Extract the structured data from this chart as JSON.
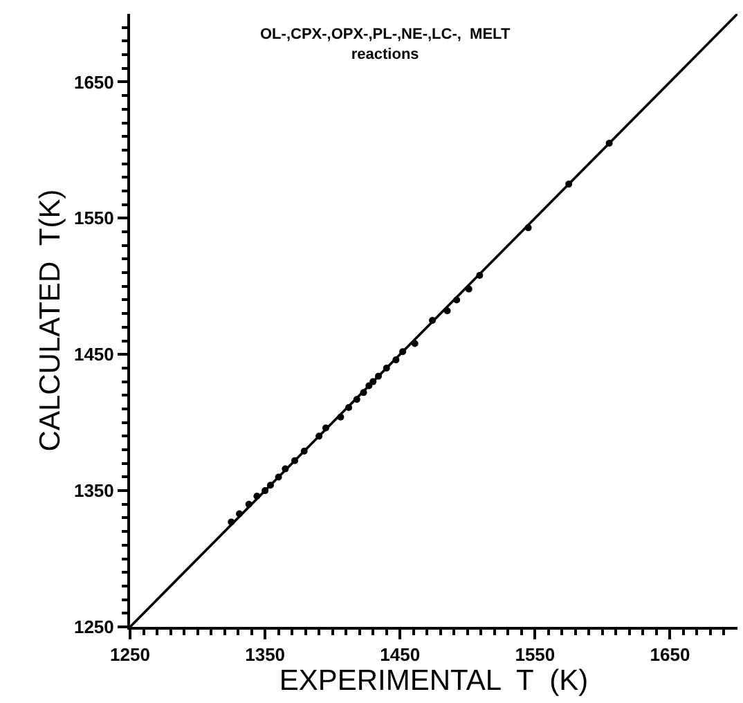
{
  "chart_data": {
    "type": "scatter",
    "xlabel": "EXPERIMENTAL  T  (K)",
    "ylabel": "CALCULATED  T(K)",
    "annotations": [
      "OL-,CPX-,OPX-,PL-,NE-,LC-,  MELT\nreactions"
    ],
    "xlim": [
      1250,
      1700
    ],
    "ylim": [
      1250,
      1700
    ],
    "xticks": [
      1250,
      {
        "value": 1260,
        "label": null
      },
      {
        "value": 1270,
        "label": null
      },
      {
        "value": 1280,
        "label": null
      },
      {
        "value": 1290,
        "label": null
      },
      {
        "value": 1300,
        "label": null
      },
      {
        "value": 1310,
        "label": null
      },
      {
        "value": 1320,
        "label": null
      },
      {
        "value": 1330,
        "label": null
      },
      {
        "value": 1340,
        "label": null
      },
      1350,
      {
        "value": 1360,
        "label": null
      },
      {
        "value": 1370,
        "label": null
      },
      {
        "value": 1380,
        "label": null
      },
      {
        "value": 1390,
        "label": null
      },
      {
        "value": 1400,
        "label": null
      },
      {
        "value": 1410,
        "label": null
      },
      {
        "value": 1420,
        "label": null
      },
      {
        "value": 1430,
        "label": null
      },
      {
        "value": 1440,
        "label": null
      },
      1450,
      {
        "value": 1460,
        "label": null
      },
      {
        "value": 1470,
        "label": null
      },
      {
        "value": 1480,
        "label": null
      },
      {
        "value": 1490,
        "label": null
      },
      {
        "value": 1500,
        "label": null
      },
      {
        "value": 1510,
        "label": null
      },
      {
        "value": 1520,
        "label": null
      },
      {
        "value": 1530,
        "label": null
      },
      {
        "value": 1540,
        "label": null
      },
      1550,
      {
        "value": 1560,
        "label": null
      },
      {
        "value": 1570,
        "label": null
      },
      {
        "value": 1580,
        "label": null
      },
      {
        "value": 1590,
        "label": null
      },
      {
        "value": 1600,
        "label": null
      },
      {
        "value": 1610,
        "label": null
      },
      {
        "value": 1620,
        "label": null
      },
      {
        "value": 1630,
        "label": null
      },
      {
        "value": 1640,
        "label": null
      },
      1650,
      {
        "value": 1660,
        "label": null
      },
      {
        "value": 1670,
        "label": null
      },
      {
        "value": 1680,
        "label": null
      },
      {
        "value": 1690,
        "label": null
      }
    ],
    "yticks": [
      1250,
      {
        "value": 1260,
        "label": null
      },
      {
        "value": 1270,
        "label": null
      },
      {
        "value": 1280,
        "label": null
      },
      {
        "value": 1290,
        "label": null
      },
      {
        "value": 1300,
        "label": null
      },
      {
        "value": 1310,
        "label": null
      },
      {
        "value": 1320,
        "label": null
      },
      {
        "value": 1330,
        "label": null
      },
      {
        "value": 1340,
        "label": null
      },
      1350,
      {
        "value": 1360,
        "label": null
      },
      {
        "value": 1370,
        "label": null
      },
      {
        "value": 1380,
        "label": null
      },
      {
        "value": 1390,
        "label": null
      },
      {
        "value": 1400,
        "label": null
      },
      {
        "value": 1410,
        "label": null
      },
      {
        "value": 1420,
        "label": null
      },
      {
        "value": 1430,
        "label": null
      },
      {
        "value": 1440,
        "label": null
      },
      1450,
      {
        "value": 1460,
        "label": null
      },
      {
        "value": 1470,
        "label": null
      },
      {
        "value": 1480,
        "label": null
      },
      {
        "value": 1490,
        "label": null
      },
      {
        "value": 1500,
        "label": null
      },
      {
        "value": 1510,
        "label": null
      },
      {
        "value": 1520,
        "label": null
      },
      {
        "value": 1530,
        "label": null
      },
      {
        "value": 1540,
        "label": null
      },
      1550,
      {
        "value": 1560,
        "label": null
      },
      {
        "value": 1570,
        "label": null
      },
      {
        "value": 1580,
        "label": null
      },
      {
        "value": 1590,
        "label": null
      },
      {
        "value": 1600,
        "label": null
      },
      {
        "value": 1610,
        "label": null
      },
      {
        "value": 1620,
        "label": null
      },
      {
        "value": 1630,
        "label": null
      },
      {
        "value": 1640,
        "label": null
      },
      1650,
      {
        "value": 1660,
        "label": null
      },
      {
        "value": 1670,
        "label": null
      },
      {
        "value": 1680,
        "label": null
      },
      {
        "value": 1690,
        "label": null
      }
    ],
    "grid": false,
    "marker": "circle",
    "series": [
      {
        "type": "line",
        "color": "#000000",
        "x": [
          1250,
          1700
        ],
        "values": [
          1250,
          1700
        ],
        "marker": "none"
      },
      {
        "color": "#000000",
        "x": [
          1325,
          1331,
          1338,
          1344,
          1350,
          1354,
          1360,
          1365,
          1372,
          1379,
          1390,
          1395,
          1406,
          1412,
          1418,
          1423,
          1427,
          1430,
          1434,
          1440,
          1447,
          1452,
          1461,
          1474,
          1485,
          1492,
          1501,
          1509,
          1545,
          1575,
          1605
        ],
        "values": [
          1327,
          1333,
          1340,
          1346,
          1350,
          1354,
          1360,
          1366,
          1372,
          1379,
          1390,
          1396,
          1404,
          1411,
          1417,
          1422,
          1427,
          1430,
          1434,
          1440,
          1446,
          1452,
          1458,
          1475,
          1482,
          1490,
          1498,
          1508,
          1543,
          1575,
          1605
        ]
      }
    ]
  }
}
